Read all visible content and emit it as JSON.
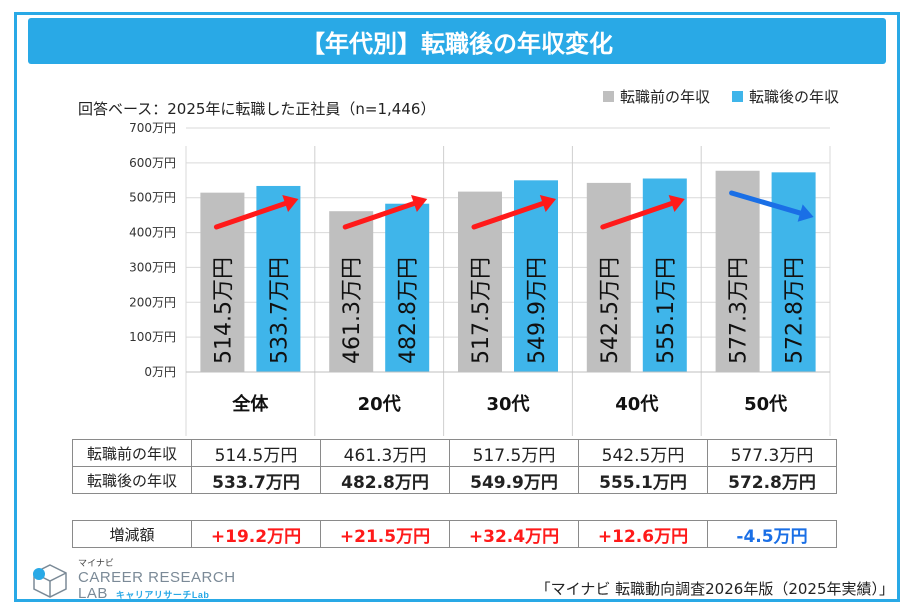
{
  "title": "【年代別】転職後の年収変化",
  "source_note": "回答ベース：2025年に転職した正社員（n=1,446）",
  "legend": [
    {
      "label": "転職前の年収",
      "color": "#bfbfbf"
    },
    {
      "label": "転職後の年収",
      "color": "#3fb5ea"
    }
  ],
  "colors": {
    "accent": "#29a9e6",
    "before": "#bfbfbf",
    "after": "#3fb5ea",
    "up_arrow": "#ff1a1a",
    "down_arrow": "#1a6fe6",
    "positive": "#ff1a1a",
    "negative": "#1a6fe6"
  },
  "chart_data": {
    "type": "bar",
    "categories": [
      "全体",
      "20代",
      "30代",
      "40代",
      "50代"
    ],
    "series": [
      {
        "name": "転職前の年収",
        "values": [
          514.5,
          461.3,
          517.5,
          542.5,
          577.3
        ]
      },
      {
        "name": "転職後の年収",
        "values": [
          533.7,
          482.8,
          549.9,
          555.1,
          572.8
        ]
      }
    ],
    "data_labels": [
      [
        "514.5万円",
        "533.7万円"
      ],
      [
        "461.3万円",
        "482.8万円"
      ],
      [
        "517.5万円",
        "549.9万円"
      ],
      [
        "542.5万円",
        "555.1万円"
      ],
      [
        "577.3万円",
        "572.8万円"
      ]
    ],
    "yticks": [
      "0万円",
      "100万円",
      "200万円",
      "300万円",
      "400万円",
      "500万円",
      "600万円",
      "700万円"
    ],
    "ylim": [
      0,
      700
    ],
    "grid": true,
    "legend_position": "top-right",
    "arrows": [
      "up",
      "up",
      "up",
      "up",
      "down"
    ]
  },
  "table": {
    "before_label": "転職前の年収",
    "after_label": "転職後の年収",
    "before": [
      "514.5万円",
      "461.3万円",
      "517.5万円",
      "542.5万円",
      "577.3万円"
    ],
    "after": [
      "533.7万円",
      "482.8万円",
      "549.9万円",
      "555.1万円",
      "572.8万円"
    ]
  },
  "change": {
    "label": "増減額",
    "values": [
      "+19.2万円",
      "+21.5万円",
      "+32.4万円",
      "+12.6万円",
      "-4.5万円"
    ],
    "direction": [
      "positive",
      "positive",
      "positive",
      "positive",
      "negative"
    ]
  },
  "logo": {
    "small": "マイナビ",
    "main_1": "CAREER RESEARCH",
    "main_2": "LAB",
    "sub": "キャリアリサーチLab"
  },
  "footer_source": "「マイナビ 転職動向調査2026年版（2025年実績）」"
}
